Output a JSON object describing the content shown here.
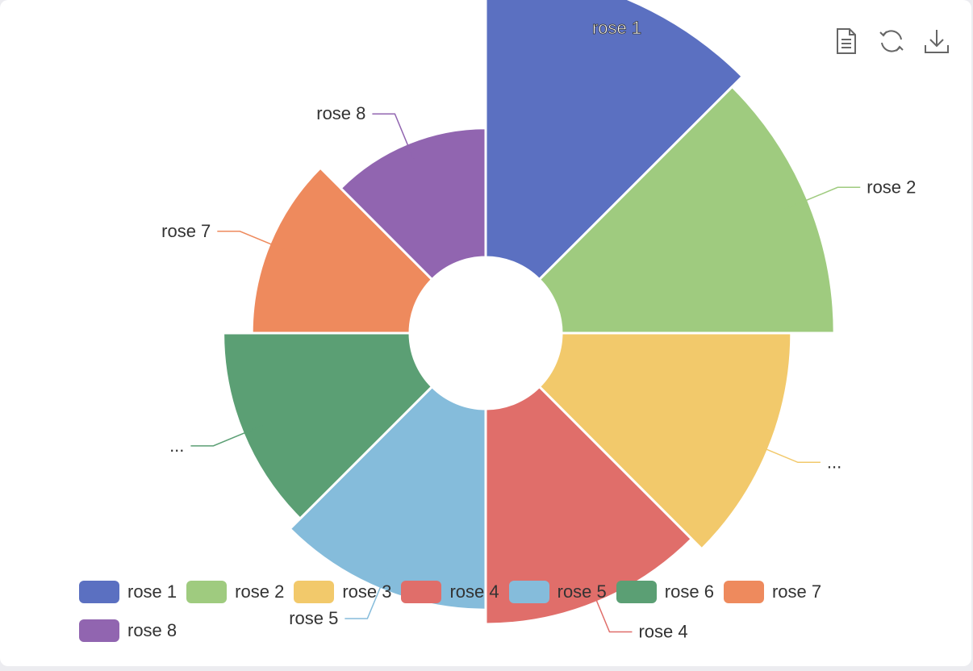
{
  "chart_data": {
    "type": "pie",
    "rose_type": "radius",
    "categories": [
      "rose 1",
      "rose 2",
      "rose 3",
      "rose 4",
      "rose 5",
      "rose 6",
      "rose 7",
      "rose 8"
    ],
    "values": [
      40,
      38,
      32,
      30,
      28,
      26,
      22,
      18
    ],
    "colors": [
      "#5b70c1",
      "#9fcb7f",
      "#f2c96b",
      "#e06e6a",
      "#85bcdb",
      "#5b9f74",
      "#ee8a5d",
      "#9165b0"
    ],
    "labels": [
      "rose 1",
      "rose 2",
      "...",
      "rose 4",
      "rose 5",
      "...",
      "rose 7",
      "rose 8"
    ],
    "legend_position": "bottom"
  },
  "toolbox": {
    "icons": [
      "data-view-icon",
      "refresh-icon",
      "download-icon"
    ]
  }
}
